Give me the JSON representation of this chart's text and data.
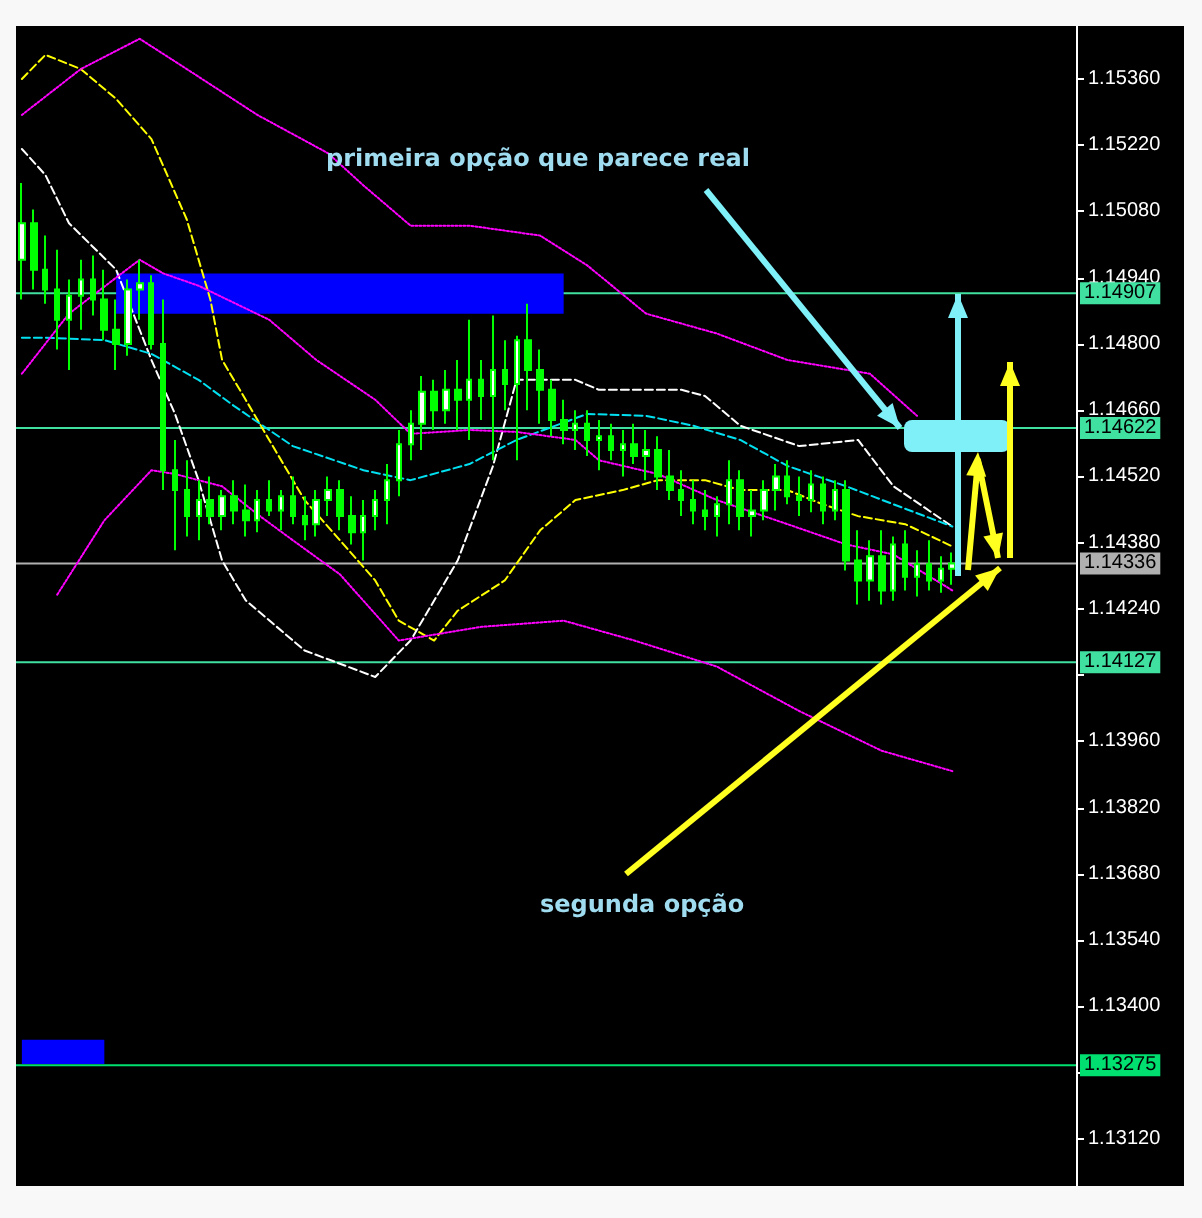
{
  "chart_data": {
    "type": "candlestick",
    "color": "#00ff00",
    "marker": "none",
    "tick_labels": "y",
    "categories": [
      null,
      null,
      null,
      null,
      null,
      null,
      null,
      null,
      null,
      null,
      null,
      null,
      null,
      null,
      null,
      null,
      null,
      null,
      null,
      null,
      null,
      null,
      null,
      null,
      null,
      null,
      null,
      null,
      null,
      null,
      null,
      null,
      null,
      null,
      null,
      null,
      null,
      null,
      null,
      null,
      null,
      null,
      null,
      null,
      null,
      null,
      null,
      null,
      null,
      null,
      null,
      null,
      null,
      null,
      null,
      null,
      null,
      null,
      null,
      null,
      null,
      null,
      null,
      null,
      null,
      null,
      null,
      null,
      null,
      null,
      null,
      null,
      null,
      null,
      null,
      null,
      null,
      null,
      null,
      null,
      null,
      null,
      null,
      null,
      null,
      null,
      null,
      null,
      null,
      null
    ],
    "ohlc": [
      [
        1.14978,
        1.1514,
        1.14894,
        1.15055
      ],
      [
        1.15055,
        1.15084,
        1.14915,
        1.14957
      ],
      [
        1.14957,
        1.15029,
        1.14885,
        1.14915
      ],
      [
        1.14915,
        1.14999,
        1.14788,
        1.14851
      ],
      [
        1.14851,
        1.14936,
        1.14745,
        1.14902
      ],
      [
        1.14902,
        1.14978,
        1.1483,
        1.14936
      ],
      [
        1.14936,
        1.14987,
        1.1486,
        1.14894
      ],
      [
        1.14894,
        1.14957,
        1.14808,
        1.1483
      ],
      [
        1.1483,
        1.14894,
        1.14745,
        1.148
      ],
      [
        1.148,
        1.14936,
        1.14775,
        1.14915
      ],
      [
        1.14915,
        1.14978,
        1.14851,
        1.14928
      ],
      [
        1.14928,
        1.14945,
        1.14788,
        1.148
      ],
      [
        1.148,
        1.14894,
        1.14491,
        1.14533
      ],
      [
        1.14533,
        1.14597,
        1.14364,
        1.14491
      ],
      [
        1.14491,
        1.14554,
        1.14393,
        1.14436
      ],
      [
        1.14436,
        1.14512,
        1.14385,
        1.1447
      ],
      [
        1.1447,
        1.1452,
        1.14419,
        1.14436
      ],
      [
        1.14436,
        1.14491,
        1.14406,
        1.14478
      ],
      [
        1.14478,
        1.14512,
        1.14419,
        1.14448
      ],
      [
        1.14448,
        1.14503,
        1.14393,
        1.14427
      ],
      [
        1.14427,
        1.14491,
        1.14402,
        1.1447
      ],
      [
        1.1447,
        1.14512,
        1.14436,
        1.14448
      ],
      [
        1.14448,
        1.14491,
        1.14406,
        1.14478
      ],
      [
        1.14478,
        1.1452,
        1.14419,
        1.14436
      ],
      [
        1.14436,
        1.14478,
        1.14385,
        1.14419
      ],
      [
        1.14419,
        1.14491,
        1.14393,
        1.1447
      ],
      [
        1.1447,
        1.1452,
        1.14436,
        1.14491
      ],
      [
        1.14491,
        1.14512,
        1.14406,
        1.14436
      ],
      [
        1.14436,
        1.14478,
        1.14376,
        1.14402
      ],
      [
        1.14402,
        1.1447,
        1.14342,
        1.14436
      ],
      [
        1.14436,
        1.14491,
        1.14406,
        1.1447
      ],
      [
        1.1447,
        1.14546,
        1.14419,
        1.14512
      ],
      [
        1.14512,
        1.14618,
        1.14478,
        1.14588
      ],
      [
        1.14588,
        1.1466,
        1.14554,
        1.14631
      ],
      [
        1.14631,
        1.14732,
        1.14576,
        1.14699
      ],
      [
        1.14699,
        1.14724,
        1.14618,
        1.1466
      ],
      [
        1.1466,
        1.14745,
        1.14631,
        1.14703
      ],
      [
        1.14703,
        1.14766,
        1.14618,
        1.14682
      ],
      [
        1.14682,
        1.14851,
        1.14597,
        1.14724
      ],
      [
        1.14724,
        1.14766,
        1.14639,
        1.1469
      ],
      [
        1.1469,
        1.1486,
        1.14554,
        1.14745
      ],
      [
        1.14745,
        1.14808,
        1.1466,
        1.14715
      ],
      [
        1.14715,
        1.14817,
        1.14554,
        1.14808
      ],
      [
        1.14808,
        1.14885,
        1.1466,
        1.14745
      ],
      [
        1.14745,
        1.14788,
        1.14631,
        1.14703
      ],
      [
        1.14703,
        1.14724,
        1.14605,
        1.14639
      ],
      [
        1.14639,
        1.14682,
        1.14588,
        1.14618
      ],
      [
        1.14618,
        1.1466,
        1.14576,
        1.14631
      ],
      [
        1.14631,
        1.1466,
        1.14563,
        1.14597
      ],
      [
        1.14597,
        1.14639,
        1.14533,
        1.14605
      ],
      [
        1.14605,
        1.14631,
        1.14554,
        1.14576
      ],
      [
        1.14576,
        1.14618,
        1.1452,
        1.14588
      ],
      [
        1.14588,
        1.14631,
        1.14546,
        1.14563
      ],
      [
        1.14563,
        1.14618,
        1.14512,
        1.14576
      ],
      [
        1.14576,
        1.14605,
        1.14491,
        1.1452
      ],
      [
        1.1452,
        1.14576,
        1.1447,
        1.14491
      ],
      [
        1.14491,
        1.14533,
        1.14436,
        1.1447
      ],
      [
        1.1447,
        1.14512,
        1.14419,
        1.14448
      ],
      [
        1.14448,
        1.14491,
        1.14406,
        1.14436
      ],
      [
        1.14436,
        1.14478,
        1.14393,
        1.14461
      ],
      [
        1.14461,
        1.14554,
        1.14419,
        1.14512
      ],
      [
        1.14512,
        1.14533,
        1.14406,
        1.14436
      ],
      [
        1.14436,
        1.14491,
        1.14393,
        1.14448
      ],
      [
        1.14448,
        1.14512,
        1.14427,
        1.14491
      ],
      [
        1.14491,
        1.14546,
        1.14448,
        1.1452
      ],
      [
        1.1452,
        1.14554,
        1.14461,
        1.14478
      ],
      [
        1.14478,
        1.1452,
        1.14436,
        1.1447
      ],
      [
        1.1447,
        1.14533,
        1.14444,
        1.14503
      ],
      [
        1.14503,
        1.1452,
        1.14419,
        1.14448
      ],
      [
        1.14448,
        1.14512,
        1.14427,
        1.14491
      ],
      [
        1.14491,
        1.14512,
        1.14321,
        1.14342
      ],
      [
        1.14342,
        1.14406,
        1.14249,
        1.143
      ],
      [
        1.143,
        1.14385,
        1.14257,
        1.14351
      ],
      [
        1.14351,
        1.14406,
        1.14249,
        1.14279
      ],
      [
        1.14279,
        1.14393,
        1.14257,
        1.14376
      ],
      [
        1.14376,
        1.14406,
        1.14279,
        1.14308
      ],
      [
        1.14308,
        1.14364,
        1.14266,
        1.14334
      ],
      [
        1.14334,
        1.14385,
        1.14279,
        1.143
      ],
      [
        1.143,
        1.14351,
        1.14274,
        1.14325
      ],
      [
        1.14325,
        1.14359,
        1.14291,
        1.14336
      ],
      null,
      null,
      null,
      null,
      null,
      null,
      null,
      null,
      null,
      null
    ],
    "series": [
      {
        "type": "line",
        "color": "#ffff00",
        "line_style": "dashed",
        "values": [
          1.1536,
          null,
          1.15411,
          null,
          null,
          1.15381,
          null,
          null,
          1.15318,
          null,
          null,
          1.15233,
          null,
          null,
          1.15063,
          null,
          1.14894,
          1.14766,
          null,
          1.14682,
          null,
          1.14597,
          null,
          null,
          1.1447,
          null,
          null,
          1.14385,
          null,
          null,
          1.143,
          null,
          1.14215,
          null,
          null,
          1.14173,
          null,
          1.14236,
          null,
          null,
          null,
          1.143,
          null,
          null,
          1.14406,
          null,
          null,
          1.1447,
          null,
          null,
          null,
          1.14491,
          null,
          null,
          1.14512,
          null,
          null,
          null,
          1.14512,
          null,
          null,
          1.14491,
          null,
          null,
          null,
          1.14491,
          null,
          null,
          1.14461,
          null,
          null,
          1.14436,
          null,
          null,
          null,
          1.14419,
          null,
          null,
          null,
          1.14372,
          null,
          null,
          null,
          null,
          null,
          null,
          null,
          null,
          null,
          null
        ]
      },
      {
        "type": "line",
        "color": "#ffffff",
        "line_style": "dashed",
        "values": [
          1.15212,
          null,
          1.15157,
          null,
          1.15055,
          null,
          null,
          null,
          1.14957,
          null,
          null,
          1.14766,
          null,
          1.14652,
          null,
          1.14512,
          null,
          1.14342,
          null,
          1.14258,
          null,
          null,
          null,
          null,
          1.14152,
          null,
          null,
          null,
          null,
          null,
          1.14096,
          null,
          null,
          1.14173,
          null,
          null,
          null,
          1.14342,
          null,
          null,
          1.14542,
          null,
          1.14724,
          null,
          null,
          null,
          null,
          1.14724,
          null,
          1.14703,
          null,
          null,
          null,
          null,
          null,
          null,
          1.14703,
          null,
          1.1469,
          null,
          null,
          1.14627,
          null,
          null,
          null,
          null,
          1.14584,
          null,
          null,
          null,
          null,
          1.14597,
          null,
          null,
          1.14499,
          null,
          null,
          null,
          null,
          1.14414,
          null,
          null,
          null,
          null,
          null,
          null,
          null,
          null,
          null,
          null
        ]
      },
      {
        "type": "line",
        "color": "#00e0f0",
        "line_style": "dashed",
        "values": [
          1.14813,
          null,
          1.14813,
          null,
          null,
          null,
          null,
          1.14808,
          null,
          null,
          null,
          1.14779,
          null,
          null,
          null,
          1.14724,
          null,
          null,
          1.14669,
          null,
          null,
          null,
          null,
          1.14584,
          null,
          null,
          null,
          null,
          null,
          1.14533,
          null,
          null,
          null,
          1.14512,
          null,
          null,
          null,
          null,
          1.14546,
          null,
          null,
          null,
          1.14597,
          null,
          null,
          null,
          null,
          null,
          1.14652,
          null,
          null,
          null,
          null,
          1.14648,
          null,
          null,
          null,
          1.14627,
          null,
          null,
          null,
          1.14597,
          null,
          null,
          null,
          1.14542,
          null,
          null,
          null,
          null,
          1.14499,
          null,
          null,
          null,
          1.14461,
          null,
          null,
          null,
          null,
          1.14414,
          null,
          null,
          null,
          null,
          null,
          null,
          null,
          null,
          null,
          null
        ]
      },
      {
        "type": "line",
        "color": "#ff00ff",
        "line_style": "dotted",
        "values": [
          1.14737,
          null,
          null,
          null,
          1.14864,
          null,
          null,
          null,
          null,
          null,
          1.14978,
          null,
          1.14949,
          null,
          null,
          1.14923,
          null,
          null,
          null,
          null,
          null,
          1.14851,
          null,
          null,
          null,
          1.14766,
          null,
          null,
          null,
          null,
          1.14682,
          null,
          null,
          1.1461,
          null,
          null,
          null,
          null,
          1.14618,
          null,
          null,
          null,
          1.14614,
          null,
          null,
          null,
          null,
          1.14597,
          null,
          1.14554,
          null,
          null,
          null,
          null,
          1.14525,
          null,
          null,
          null,
          null,
          1.1447,
          null,
          null,
          null,
          null,
          null,
          1.14419,
          null,
          null,
          null,
          null,
          1.14376,
          null,
          null,
          null,
          1.14355,
          null,
          null,
          null,
          null,
          1.14279,
          null,
          null,
          null,
          null,
          null,
          null,
          null,
          null,
          null,
          null
        ]
      },
      {
        "type": "line",
        "color": "#ff00ff",
        "line_style": "dotted",
        "values": [
          1.15284,
          null,
          null,
          null,
          null,
          1.15381,
          null,
          null,
          null,
          null,
          1.15445,
          null,
          null,
          null,
          1.15381,
          null,
          null,
          null,
          null,
          null,
          1.15284,
          null,
          null,
          null,
          null,
          null,
          1.15203,
          null,
          null,
          1.15135,
          null,
          null,
          null,
          1.1505,
          null,
          null,
          null,
          null,
          1.1505,
          null,
          null,
          null,
          null,
          null,
          1.15029,
          null,
          null,
          null,
          1.14966,
          null,
          null,
          null,
          null,
          1.14864,
          null,
          null,
          null,
          null,
          null,
          1.14822,
          null,
          null,
          null,
          null,
          null,
          1.14766,
          null,
          null,
          null,
          null,
          null,
          null,
          1.14737,
          null,
          null,
          null,
          1.14648,
          null,
          null,
          null,
          null,
          null,
          null,
          null,
          null,
          null,
          null,
          null,
          null,
          null
        ]
      },
      {
        "type": "line",
        "color": "#ff00ff",
        "line_style": "dotted",
        "values": [
          null,
          null,
          null,
          1.1427,
          null,
          null,
          null,
          1.14427,
          null,
          null,
          null,
          1.14533,
          null,
          1.14525,
          null,
          null,
          null,
          1.14499,
          null,
          null,
          1.1444,
          null,
          null,
          1.14385,
          null,
          null,
          null,
          1.14313,
          null,
          null,
          null,
          null,
          1.14173,
          null,
          null,
          null,
          null,
          null,
          null,
          1.14202,
          null,
          null,
          null,
          null,
          null,
          null,
          1.14215,
          null,
          null,
          null,
          null,
          null,
          1.14173,
          null,
          null,
          null,
          null,
          null,
          null,
          1.14118,
          null,
          null,
          null,
          null,
          null,
          null,
          1.14024,
          null,
          null,
          null,
          null,
          null,
          null,
          1.1394,
          null,
          null,
          null,
          null,
          null,
          1.13897,
          null,
          null,
          null,
          null,
          null,
          null,
          null,
          null,
          null,
          null
        ]
      }
    ],
    "ylim": [
      1.1302,
      1.15472
    ],
    "yticks": [
      {
        "value": 1.1536,
        "label": "1.15360"
      },
      {
        "value": 1.1522,
        "label": "1.15220"
      },
      {
        "value": 1.1508,
        "label": "1.15080"
      },
      {
        "value": 1.1494,
        "label": "1.14940"
      },
      {
        "value": 1.148,
        "label": "1.14800"
      },
      {
        "value": 1.1466,
        "label": "1.14660"
      },
      {
        "value": 1.1452,
        "label": "1.14520"
      },
      {
        "value": 1.1438,
        "label": "1.14380"
      },
      {
        "value": 1.1424,
        "label": "1.14240"
      },
      {
        "value": 1.141,
        "label": null
      },
      {
        "value": 1.1396,
        "label": "1.13960"
      },
      {
        "value": 1.1382,
        "label": "1.13820"
      },
      {
        "value": 1.1368,
        "label": "1.13680"
      },
      {
        "value": 1.1354,
        "label": "1.13540"
      },
      {
        "value": 1.134,
        "label": "1.13400"
      },
      {
        "value": 1.1326,
        "label": null
      },
      {
        "value": 1.1312,
        "label": "1.13120"
      }
    ],
    "ref_lines": [
      {
        "axis": "y",
        "value": 1.14907,
        "label": "1.14907",
        "color": "#40e0a0"
      },
      {
        "axis": "y",
        "value": 1.14622,
        "label": "1.14622",
        "color": "#40e0a0"
      },
      {
        "axis": "y",
        "value": 1.14336,
        "label": "1.14336",
        "color": "#b0b0b0"
      },
      {
        "axis": "y",
        "value": 1.14127,
        "label": "1.14127",
        "color": "#40e0a0"
      },
      {
        "axis": "y",
        "value": 1.13275,
        "label": "1.13275",
        "color": "#00e070"
      }
    ],
    "bands": [
      {
        "axis": "y",
        "from": 1.14864,
        "to": 1.14949,
        "color": "#0000ff"
      },
      {
        "axis": "y",
        "from": 1.13278,
        "to": 1.13329,
        "color": "#0000ff"
      }
    ],
    "annotations": [
      "primeira opção que parece real",
      "segunda opção"
    ]
  }
}
